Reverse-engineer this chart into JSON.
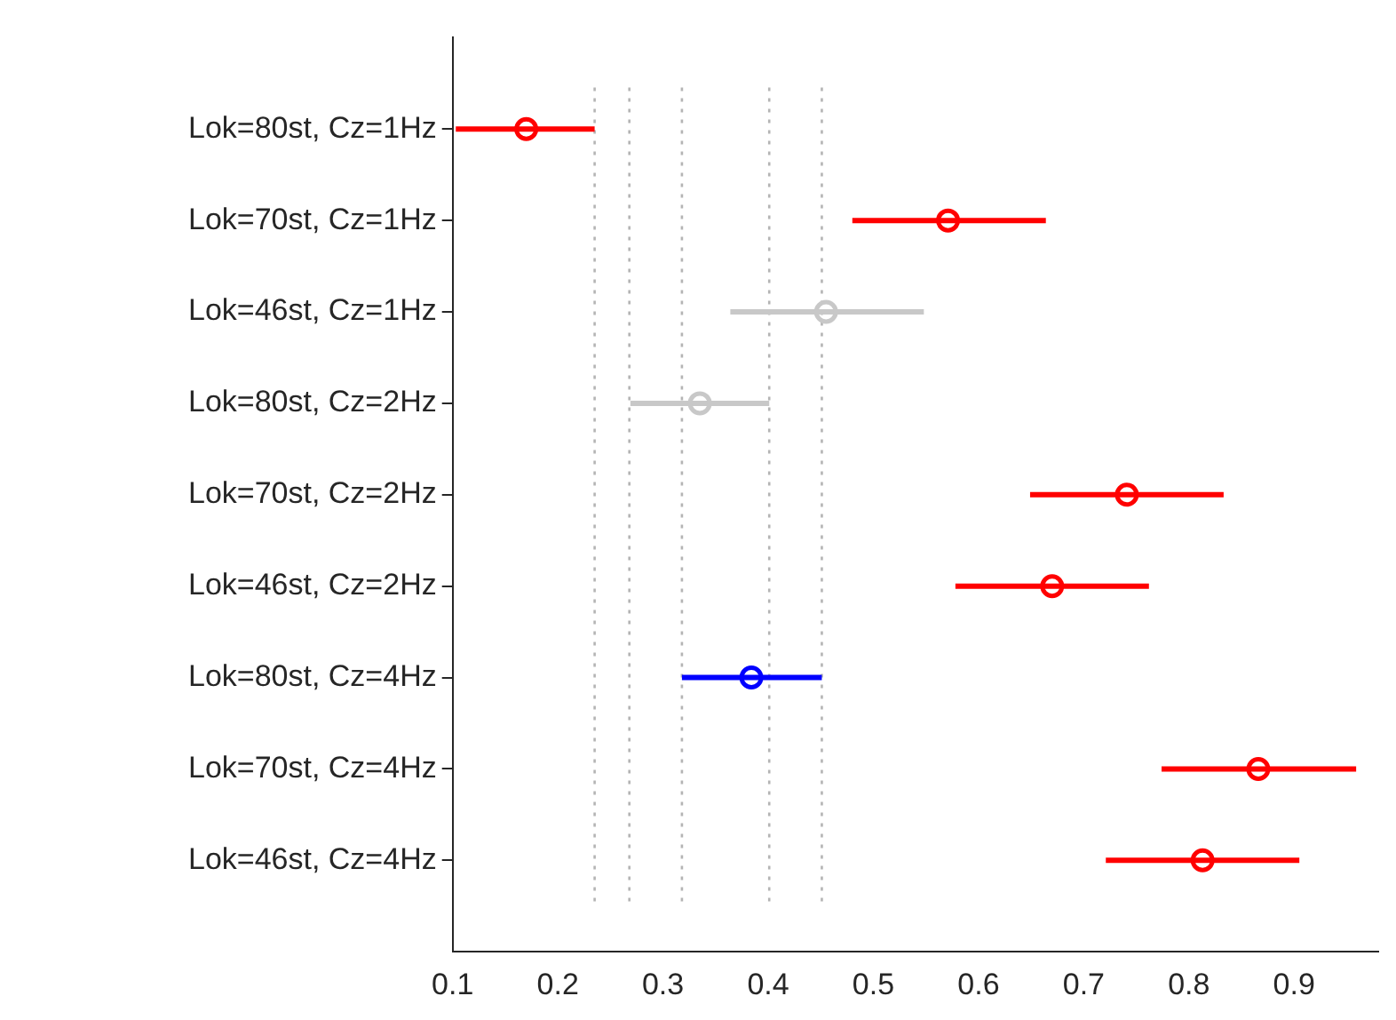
{
  "chart_data": {
    "type": "scatter",
    "orientation": "horizontal",
    "marker": "circle",
    "categories": [
      "Lok=80st, Cz=1Hz",
      "Lok=70st, Cz=1Hz",
      "Lok=46st, Cz=1Hz",
      "Lok=80st, Cz=2Hz",
      "Lok=70st, Cz=2Hz",
      "Lok=46st, Cz=2Hz",
      "Lok=80st, Cz=4Hz",
      "Lok=70st, Cz=4Hz",
      "Lok=46st, Cz=4Hz"
    ],
    "values": [
      0.17,
      0.571,
      0.455,
      0.335,
      0.741,
      0.67,
      0.384,
      0.866,
      0.813
    ],
    "errors": [
      [
        0.103,
        0.235
      ],
      [
        0.48,
        0.664
      ],
      [
        0.364,
        0.548
      ],
      [
        0.269,
        0.401
      ],
      [
        0.649,
        0.833
      ],
      [
        0.578,
        0.762
      ],
      [
        0.318,
        0.451
      ],
      [
        0.774,
        0.959
      ],
      [
        0.721,
        0.905
      ]
    ],
    "colors": [
      "#ff0000",
      "#ff0000",
      "#c8c8c8",
      "#c8c8c8",
      "#ff0000",
      "#ff0000",
      "#0000ff",
      "#ff0000",
      "#ff0000"
    ],
    "xlim": [
      0.1,
      0.98
    ],
    "xticks": [
      0.1,
      0.2,
      0.3,
      0.4,
      0.5,
      0.6,
      0.7,
      0.8,
      0.9
    ],
    "ref_lines": [
      {
        "axis": "x",
        "value": 0.235,
        "color": "#b4b4b4",
        "line_style": "dotted"
      },
      {
        "axis": "x",
        "value": 0.268,
        "color": "#b4b4b4",
        "line_style": "dotted"
      },
      {
        "axis": "x",
        "value": 0.318,
        "color": "#b4b4b4",
        "line_style": "dotted"
      },
      {
        "axis": "x",
        "value": 0.401,
        "color": "#b4b4b4",
        "line_style": "dotted"
      },
      {
        "axis": "x",
        "value": 0.451,
        "color": "#b4b4b4",
        "line_style": "dotted"
      }
    ]
  }
}
